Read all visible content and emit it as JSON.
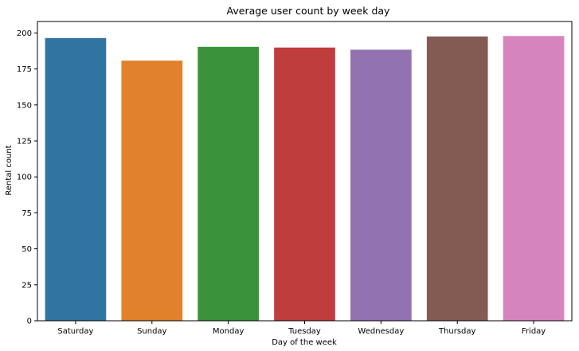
{
  "chart_data": {
    "type": "bar",
    "title": "Average user count by week day",
    "xlabel": "Day of the week",
    "ylabel": "Rental count",
    "categories": [
      "Saturday",
      "Sunday",
      "Monday",
      "Tuesday",
      "Wednesday",
      "Thursday",
      "Friday"
    ],
    "values": [
      196.5,
      180.8,
      190.4,
      189.9,
      188.4,
      197.6,
      197.9
    ],
    "colors": [
      "#3274a1",
      "#e1812c",
      "#3a923a",
      "#c03d3e",
      "#9372b2",
      "#845b53",
      "#d684bd"
    ],
    "ylim": [
      0,
      208
    ],
    "yticks": [
      0,
      25,
      50,
      75,
      100,
      125,
      150,
      175,
      200
    ],
    "grid": false,
    "legend": "none"
  }
}
